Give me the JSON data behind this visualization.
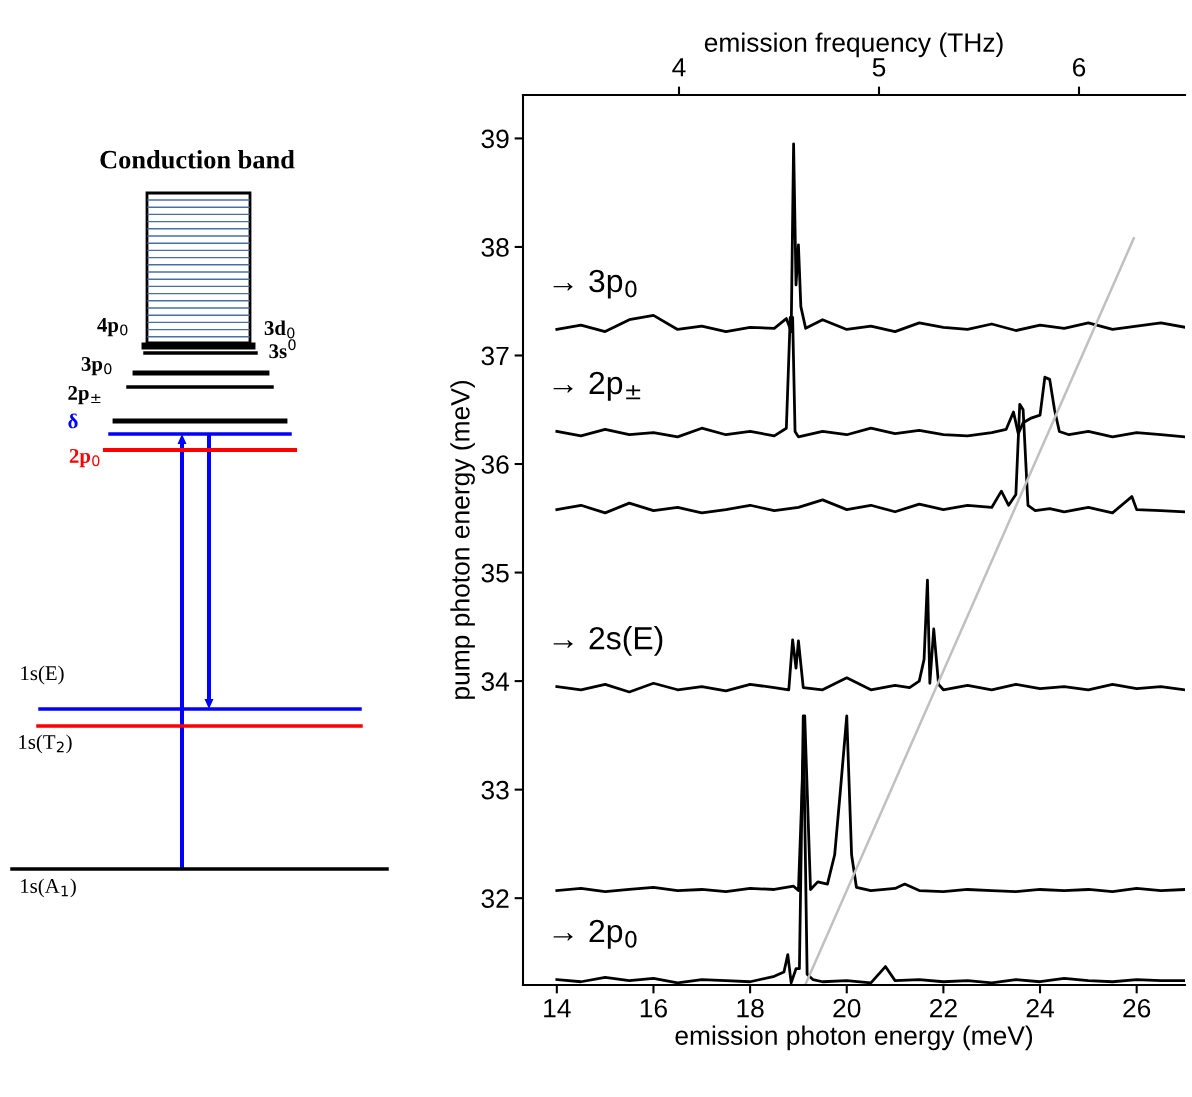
{
  "chart_data": [
    {
      "type": "other",
      "title": "Conduction band",
      "annotations": [
        "4p$_{0}$",
        "3d$_{0}$",
        "3s$^{0}$",
        "3p$_{0}$",
        "2p$_{±}$",
        "δ",
        "2p$_{0}$",
        "1s(E)",
        "1s(T$_{2}$)",
        "1s(A$_{1}$)"
      ]
    },
    {
      "type": "line",
      "xlabel": "emission photon energy (meV)",
      "ylabel": "pump photon energy (meV)",
      "x2label": "emission frequency (THz)",
      "xlim": [
        13.3,
        27.0
      ],
      "xticks": [
        14,
        16,
        18,
        20,
        22,
        24,
        26
      ],
      "ylim": [
        31.2,
        39.4
      ],
      "yticks": [
        32,
        33,
        34,
        35,
        36,
        37,
        38,
        39
      ],
      "x2lim": [
        3.22,
        6.53
      ],
      "x2ticks": [
        4,
        5,
        6
      ],
      "grid": false,
      "legend": false,
      "marker": "none",
      "line_style": "solid",
      "series": [
        {
          "name": "→ 3p$_{0}$",
          "color": "#000000",
          "x": [
            14.0,
            14.5,
            15.0,
            15.5,
            16.0,
            16.5,
            17.0,
            17.5,
            18.0,
            18.5,
            18.75,
            18.85,
            18.9,
            18.95,
            19.0,
            19.05,
            19.15,
            19.5,
            20.0,
            20.5,
            21.0,
            21.5,
            22.0,
            22.5,
            23.0,
            23.5,
            24.0,
            24.5,
            25.0,
            25.5,
            26.0,
            26.5,
            27.0
          ],
          "values": [
            37.24,
            37.28,
            37.22,
            37.33,
            37.37,
            37.24,
            37.27,
            37.22,
            37.26,
            37.25,
            37.34,
            37.22,
            38.95,
            37.65,
            38.02,
            37.45,
            37.25,
            37.33,
            37.24,
            37.27,
            37.22,
            37.3,
            37.26,
            37.24,
            37.29,
            37.23,
            37.28,
            37.25,
            37.3,
            37.24,
            37.27,
            37.3,
            37.26
          ]
        },
        {
          "name": "→ 2p$_{±}$",
          "color": "#000000",
          "x": [
            14.0,
            14.5,
            15.0,
            15.5,
            16.0,
            16.5,
            17.0,
            17.5,
            18.0,
            18.5,
            18.75,
            18.83,
            18.88,
            18.93,
            19.0,
            19.5,
            20.0,
            20.5,
            21.0,
            21.5,
            22.0,
            22.5,
            23.0,
            23.3,
            23.45,
            23.55,
            23.65,
            23.8,
            24.0,
            24.1,
            24.2,
            24.3,
            24.4,
            24.6,
            25.0,
            25.5,
            26.0,
            26.5,
            27.0
          ],
          "values": [
            36.3,
            36.26,
            36.32,
            36.27,
            36.29,
            36.25,
            36.33,
            36.27,
            36.3,
            36.26,
            36.33,
            37.35,
            37.35,
            36.3,
            36.25,
            36.3,
            36.27,
            36.33,
            36.28,
            36.31,
            36.27,
            36.26,
            36.29,
            36.32,
            36.48,
            36.28,
            36.38,
            36.42,
            36.45,
            36.8,
            36.78,
            36.5,
            36.3,
            36.27,
            36.3,
            36.25,
            36.29,
            36.27,
            36.25
          ]
        },
        {
          "color": "#000000",
          "x": [
            14.0,
            14.5,
            15.0,
            15.5,
            16.0,
            16.5,
            17.0,
            17.5,
            18.0,
            18.5,
            19.0,
            19.5,
            20.0,
            20.5,
            21.0,
            21.5,
            22.0,
            22.5,
            23.0,
            23.2,
            23.35,
            23.5,
            23.58,
            23.65,
            23.75,
            23.9,
            24.2,
            24.5,
            25.0,
            25.5,
            25.9,
            26.0,
            26.5,
            27.0
          ],
          "values": [
            35.58,
            35.62,
            35.55,
            35.64,
            35.57,
            35.6,
            35.55,
            35.58,
            35.62,
            35.57,
            35.6,
            35.67,
            35.58,
            35.62,
            35.56,
            35.63,
            35.58,
            35.62,
            35.6,
            35.75,
            35.62,
            35.72,
            36.55,
            36.5,
            35.62,
            35.57,
            35.59,
            35.56,
            35.6,
            35.55,
            35.7,
            35.58,
            35.57,
            35.56
          ]
        },
        {
          "name": "→ 2s(E)",
          "color": "#000000",
          "x": [
            14.0,
            14.5,
            15.0,
            15.5,
            16.0,
            16.5,
            17.0,
            17.5,
            18.0,
            18.5,
            18.8,
            18.88,
            18.95,
            19.0,
            19.1,
            19.5,
            20.0,
            20.5,
            21.0,
            21.3,
            21.5,
            21.6,
            21.67,
            21.72,
            21.8,
            21.9,
            22.0,
            22.5,
            23.0,
            23.5,
            24.0,
            24.5,
            25.0,
            25.5,
            26.0,
            26.5,
            27.0
          ],
          "values": [
            33.95,
            33.92,
            33.97,
            33.9,
            33.98,
            33.92,
            33.95,
            33.91,
            33.97,
            33.94,
            33.92,
            34.38,
            34.12,
            34.37,
            33.94,
            33.92,
            34.03,
            33.92,
            33.96,
            33.94,
            34.0,
            34.2,
            34.93,
            33.98,
            34.48,
            33.97,
            33.92,
            33.96,
            33.92,
            33.97,
            33.93,
            33.95,
            33.92,
            33.97,
            33.93,
            33.95,
            33.92
          ]
        },
        {
          "color": "#000000",
          "x": [
            14.0,
            14.5,
            15.0,
            15.5,
            16.0,
            16.5,
            17.0,
            17.5,
            18.0,
            18.5,
            18.9,
            19.0,
            19.13,
            19.25,
            19.4,
            19.6,
            19.75,
            19.87,
            20.0,
            20.1,
            20.2,
            20.5,
            21.0,
            21.2,
            21.5,
            22.0,
            22.5,
            23.0,
            23.5,
            24.0,
            24.5,
            25.0,
            25.5,
            26.0,
            26.5,
            27.0
          ],
          "values": [
            32.07,
            32.09,
            32.06,
            32.08,
            32.1,
            32.07,
            32.08,
            32.06,
            32.09,
            32.08,
            32.11,
            32.07,
            33.68,
            32.08,
            32.15,
            32.13,
            32.4,
            33.0,
            33.68,
            32.4,
            32.1,
            32.07,
            32.09,
            32.13,
            32.07,
            32.06,
            32.08,
            32.07,
            32.06,
            32.08,
            32.07,
            32.08,
            32.06,
            32.09,
            32.07,
            32.08
          ]
        },
        {
          "name": "→ 2p$_{0}$",
          "color": "#000000",
          "x": [
            14.0,
            14.5,
            15.0,
            15.5,
            16.0,
            16.5,
            17.0,
            17.5,
            18.0,
            18.5,
            18.7,
            18.78,
            18.85,
            18.95,
            19.02,
            19.1,
            19.18,
            19.3,
            19.5,
            20.0,
            20.5,
            20.8,
            21.0,
            21.5,
            22.0,
            22.5,
            23.0,
            23.5,
            24.0,
            24.5,
            25.0,
            25.5,
            26.0,
            26.5,
            27.0
          ],
          "values": [
            31.25,
            31.23,
            31.27,
            31.24,
            31.26,
            31.22,
            31.25,
            31.24,
            31.23,
            31.28,
            31.32,
            31.48,
            31.22,
            31.35,
            31.35,
            33.68,
            31.3,
            31.25,
            31.23,
            31.24,
            31.22,
            31.37,
            31.24,
            31.25,
            31.23,
            31.24,
            31.22,
            31.25,
            31.23,
            31.26,
            31.24,
            31.23,
            31.25,
            31.24,
            31.24
          ]
        },
        {
          "color": "#c0c0c0",
          "x": [
            19.14,
            25.94
          ],
          "values": [
            31.2,
            38.08
          ]
        }
      ]
    }
  ]
}
